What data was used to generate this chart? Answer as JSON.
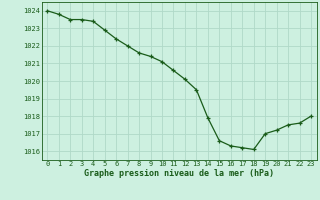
{
  "x": [
    0,
    1,
    2,
    3,
    4,
    5,
    6,
    7,
    8,
    9,
    10,
    11,
    12,
    13,
    14,
    15,
    16,
    17,
    18,
    19,
    20,
    21,
    22,
    23
  ],
  "y": [
    1024.0,
    1023.8,
    1023.5,
    1023.5,
    1023.4,
    1022.9,
    1022.4,
    1022.0,
    1021.6,
    1021.4,
    1021.1,
    1020.6,
    1020.1,
    1019.5,
    1017.9,
    1016.6,
    1016.3,
    1016.2,
    1016.1,
    1017.0,
    1017.2,
    1017.5,
    1017.6,
    1018.0
  ],
  "line_color": "#1a5c1a",
  "marker_color": "#1a5c1a",
  "bg_color": "#cdf0e0",
  "grid_color": "#b0d9c8",
  "xlabel": "Graphe pression niveau de la mer (hPa)",
  "xlabel_color": "#1a5c1a",
  "tick_color": "#1a5c1a",
  "ylim": [
    1015.5,
    1024.5
  ],
  "yticks": [
    1016,
    1017,
    1018,
    1019,
    1020,
    1021,
    1022,
    1023,
    1024
  ],
  "xticks": [
    0,
    1,
    2,
    3,
    4,
    5,
    6,
    7,
    8,
    9,
    10,
    11,
    12,
    13,
    14,
    15,
    16,
    17,
    18,
    19,
    20,
    21,
    22,
    23
  ]
}
